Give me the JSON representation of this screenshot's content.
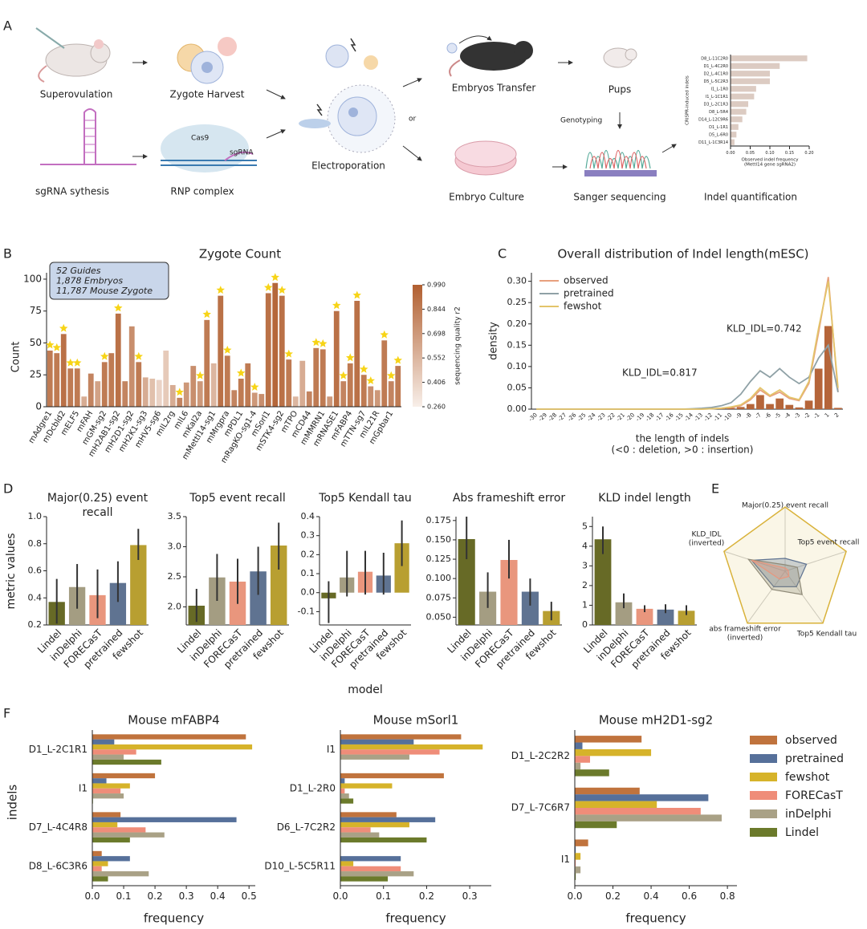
{
  "panel_labels": [
    "A",
    "B",
    "C",
    "D",
    "E",
    "F"
  ],
  "panel_a": {
    "steps": [
      "Superovulation",
      "Zygote Harvest",
      "sgRNA sythesis",
      "RNP complex",
      "Electroporation",
      "Embryos Transfer",
      "Pups",
      "Embryo Culture",
      "Sanger sequencing",
      "Indel quantification"
    ],
    "labels": [
      "Cas9",
      "sgRNA",
      "or",
      "Genotyping"
    ]
  },
  "chart_data": [
    {
      "type": "barh",
      "ylabel": "CRISPR-induced indels",
      "xlabel": [
        "Observed indel frequency",
        "(Mettl14 gene sgRNA2)"
      ],
      "categories": [
        "D8_L-11C2R0",
        "D1_L-4C2R0",
        "D2_L-4C1R0",
        "D5_L-5C2R3",
        "I1_L-1R0",
        "I1_L-1C1R1",
        "D3_L-2C1R3",
        "D8_L-5R4",
        "D14_L-12C9R6",
        "D1_L-1R1",
        "D5_L-6R0",
        "D11_L-1C3R14"
      ],
      "values": [
        0.195,
        0.125,
        0.1,
        0.1,
        0.065,
        0.06,
        0.045,
        0.04,
        0.03,
        0.02,
        0.015,
        0.01
      ],
      "color": "#dccbc2",
      "xlim": [
        0,
        0.2
      ],
      "xticks": [
        {
          "value": 0,
          "label": "0.00"
        },
        0.05,
        {
          "value": 0.1,
          "label": "0.10"
        },
        0.15,
        {
          "value": 0.2,
          "label": "0.20"
        }
      ]
    },
    {
      "type": "bar",
      "title": "Zygote Count",
      "ylabel": "Count",
      "annotation": [
        "52 Guides",
        "1,878 Embryos",
        "11,787 Mouse Zygote"
      ],
      "categories": [
        "mAdgre1",
        null,
        "mDcbld2",
        null,
        "mELF5",
        null,
        "mFAH",
        null,
        "mGM-sg2",
        null,
        "mH2AB1-sg2",
        null,
        "mH2D1-sg2",
        null,
        "mH2K1-sg3",
        null,
        "mHV5-sg6",
        null,
        "mIL2rg",
        null,
        "mIL6",
        null,
        "mKal2a",
        null,
        "mMettl14-sg1",
        null,
        "mMrgpra",
        null,
        "mPDL1",
        null,
        "mRagKO-sg1-4",
        null,
        "mSorl1",
        null,
        "mSTK4-sg2",
        null,
        "mTPO",
        null,
        "mCD44",
        null,
        "mMMRN1",
        null,
        "mRNASE1",
        null,
        "mFABP4",
        null,
        "mTTN-sg7",
        null,
        "mIL21R",
        null,
        "mGpbar1",
        null
      ],
      "values": [
        44,
        42,
        57,
        30,
        30,
        8,
        26,
        20,
        35,
        42,
        73,
        20,
        63,
        35,
        23,
        22,
        21,
        44,
        17,
        7,
        19,
        32,
        20,
        68,
        34,
        87,
        40,
        13,
        22,
        34,
        11,
        10,
        89,
        97,
        87,
        37,
        8,
        36,
        12,
        46,
        45,
        8,
        75,
        20,
        34,
        83,
        25,
        16,
        13,
        52,
        20,
        32
      ],
      "quality": [
        0.85,
        0.85,
        0.9,
        0.85,
        0.85,
        0.6,
        0.8,
        0.65,
        0.85,
        0.85,
        0.9,
        0.8,
        0.75,
        0.85,
        0.6,
        0.5,
        0.4,
        0.45,
        0.6,
        0.8,
        0.7,
        0.75,
        0.7,
        0.85,
        0.55,
        0.9,
        0.85,
        0.8,
        0.85,
        0.85,
        0.7,
        0.75,
        0.9,
        0.95,
        0.9,
        0.85,
        0.55,
        0.6,
        0.8,
        0.85,
        0.85,
        0.7,
        0.9,
        0.8,
        0.85,
        0.9,
        0.85,
        0.75,
        0.7,
        0.85,
        0.8,
        0.85
      ],
      "highlight": [
        true,
        true,
        true,
        true,
        true,
        false,
        false,
        false,
        true,
        false,
        true,
        false,
        false,
        true,
        false,
        false,
        false,
        false,
        false,
        true,
        false,
        false,
        true,
        true,
        false,
        true,
        true,
        false,
        true,
        false,
        true,
        false,
        true,
        true,
        true,
        true,
        false,
        false,
        false,
        true,
        true,
        false,
        true,
        true,
        true,
        true,
        true,
        true,
        false,
        true,
        true,
        true
      ],
      "star_color": "#f7d417",
      "ylim": [
        0,
        105
      ],
      "yticks": [
        0,
        25,
        50,
        75,
        100
      ],
      "colorbar": {
        "label": "sequencing quality r2",
        "zlim": [
          0.26,
          0.99
        ],
        "zticks": [
          {
            "value": 0.99,
            "label": "0.990"
          },
          0.844,
          0.698,
          0.552,
          0.406,
          {
            "value": 0.26,
            "label": "0.260"
          }
        ],
        "colors": [
          "#f8efe9",
          "#b15f30"
        ]
      }
    },
    {
      "type": "density",
      "title": "Overall distribution of Indel length(mESC)",
      "ylabel": "density",
      "xlabel": [
        "the length of indels",
        "(<0 : deletion, >0 : insertion)"
      ],
      "categories": [
        "-30",
        "-29",
        "-28",
        "-27",
        "-26",
        "-25",
        "-24",
        "-23",
        "-22",
        "-21",
        "-20",
        "-19",
        "-18",
        "-17",
        "-16",
        "-15",
        "-14",
        "-13",
        "-12",
        "-11",
        "-10",
        "-9",
        "-8",
        "-7",
        "-6",
        "-5",
        "-4",
        "-3",
        "-2",
        "-1",
        "1",
        "2"
      ],
      "values": [
        0,
        0,
        0,
        0,
        0,
        0,
        0,
        0,
        0,
        0,
        0,
        0,
        0,
        0,
        0,
        0,
        0,
        0,
        0,
        0.002,
        0.003,
        0.005,
        0.012,
        0.033,
        0.012,
        0.025,
        0.01,
        0.004,
        0.02,
        0.095,
        0.195,
        0.003
      ],
      "color": "#b5653a",
      "series": [
        {
          "name": "observed",
          "color": "#e8a07e",
          "values": [
            0,
            0,
            0,
            0,
            0,
            0,
            0,
            0,
            0,
            0,
            0,
            0,
            0,
            0,
            0,
            0,
            0,
            0,
            0.001,
            0.002,
            0.004,
            0.008,
            0.022,
            0.045,
            0.03,
            0.04,
            0.025,
            0.02,
            0.06,
            0.18,
            0.31,
            0.04
          ]
        },
        {
          "name": "pretrained",
          "color": "#8fa1a6",
          "values": [
            0,
            0,
            0,
            0,
            0,
            0,
            0,
            0,
            0,
            0,
            0,
            0,
            0,
            0,
            0,
            0,
            0.001,
            0.002,
            0.004,
            0.008,
            0.015,
            0.035,
            0.065,
            0.09,
            0.075,
            0.095,
            0.075,
            0.06,
            0.075,
            0.12,
            0.15,
            0.04
          ]
        },
        {
          "name": "fewshot",
          "color": "#e3c46a",
          "values": [
            0,
            0,
            0,
            0,
            0,
            0,
            0,
            0,
            0,
            0,
            0,
            0,
            0,
            0,
            0,
            0,
            0,
            0,
            0.001,
            0.002,
            0.005,
            0.01,
            0.025,
            0.05,
            0.032,
            0.045,
            0.028,
            0.022,
            0.065,
            0.19,
            0.3,
            0.05
          ]
        }
      ],
      "annotations": [
        {
          "text": "KLD_IDL=0.742",
          "color": "#d9a520"
        },
        {
          "text": "KLD_IDL=0.817",
          "color": "#6f86a6"
        }
      ],
      "legend": "upper left",
      "ylim": [
        0,
        0.32
      ],
      "yticks": [
        {
          "value": 0,
          "label": "0.00"
        },
        0.05,
        {
          "value": 0.1,
          "label": "0.10"
        },
        0.15,
        {
          "value": 0.2,
          "label": "0.20"
        },
        0.25,
        {
          "value": 0.3,
          "label": "0.30"
        }
      ]
    },
    {
      "type": "bar_error",
      "title": [
        "Major(0.25) event",
        "recall"
      ],
      "ylabel": "metric values",
      "categories": [
        "Lindel",
        "inDelphi",
        "FORECasT",
        "pretrained",
        "fewshot"
      ],
      "colors": [
        "#676a26",
        "#a49d82",
        "#e9967d",
        "#5f7391",
        "#b89f31"
      ],
      "values": [
        0.37,
        0.48,
        0.42,
        0.51,
        0.79
      ],
      "err_low": [
        0.21,
        0.32,
        0.25,
        0.37,
        0.68
      ],
      "err_high": [
        0.54,
        0.65,
        0.61,
        0.67,
        0.91
      ],
      "ylim": [
        0.2,
        1.0
      ],
      "yticks": [
        0.2,
        0.4,
        0.6,
        0.8,
        {
          "value": 1,
          "label": "1.0"
        }
      ]
    },
    {
      "type": "bar_error",
      "title": [
        "Top5 event recall"
      ],
      "categories": [
        "Lindel",
        "inDelphi",
        "FORECasT",
        "pretrained",
        "fewshot"
      ],
      "colors": [
        "#676a26",
        "#a49d82",
        "#e9967d",
        "#5f7391",
        "#b89f31"
      ],
      "values": [
        2.02,
        2.49,
        2.42,
        2.59,
        3.02
      ],
      "err_low": [
        1.75,
        2.1,
        2.05,
        2.2,
        2.62
      ],
      "err_high": [
        2.3,
        2.88,
        2.8,
        3.0,
        3.4
      ],
      "ylim": [
        1.7,
        3.5
      ],
      "yticks": [
        {
          "value": 2,
          "label": "2.0"
        },
        2.5,
        {
          "value": 3,
          "label": "3.0"
        },
        3.5
      ]
    },
    {
      "type": "bar_error",
      "title": [
        "Top5 Kendall tau"
      ],
      "xlabel": "model",
      "categories": [
        "Lindel",
        "inDelphi",
        "FORECasT",
        "pretrained",
        "fewshot"
      ],
      "colors": [
        "#676a26",
        "#a49d82",
        "#e9967d",
        "#5f7391",
        "#b89f31"
      ],
      "values": [
        -0.03,
        0.08,
        0.11,
        0.09,
        0.26
      ],
      "err_low": [
        -0.16,
        -0.02,
        -0.01,
        -0.01,
        0.14
      ],
      "err_high": [
        0.06,
        0.22,
        0.22,
        0.21,
        0.38
      ],
      "ylim": [
        -0.17,
        0.4
      ],
      "yticks": [
        -0.1,
        {
          "value": 0,
          "label": "0.0"
        },
        0.1,
        0.2,
        0.3,
        0.4
      ]
    },
    {
      "type": "bar_error",
      "title": [
        "Abs frameshift error"
      ],
      "categories": [
        "Lindel",
        "inDelphi",
        "FORECasT",
        "pretrained",
        "fewshot"
      ],
      "colors": [
        "#676a26",
        "#a49d82",
        "#e9967d",
        "#5f7391",
        "#b89f31"
      ],
      "values": [
        0.151,
        0.083,
        0.124,
        0.083,
        0.058
      ],
      "err_low": [
        0.125,
        0.062,
        0.1,
        0.065,
        0.046
      ],
      "err_high": [
        0.18,
        0.108,
        0.15,
        0.1,
        0.07
      ],
      "ylim": [
        0.04,
        0.18
      ],
      "yticks": [
        {
          "value": 0.05,
          "label": "0.050"
        },
        0.075,
        {
          "value": 0.1,
          "label": "0.100"
        },
        0.125,
        {
          "value": 0.15,
          "label": "0.150"
        },
        0.175
      ]
    },
    {
      "type": "bar_error",
      "title": [
        "KLD indel length"
      ],
      "categories": [
        "Lindel",
        "inDelphi",
        "FORECasT",
        "pretrained",
        "fewshot"
      ],
      "colors": [
        "#676a26",
        "#a49d82",
        "#e9967d",
        "#5f7391",
        "#b89f31"
      ],
      "values": [
        4.35,
        1.15,
        0.82,
        0.78,
        0.72
      ],
      "err_low": [
        3.6,
        0.85,
        0.65,
        0.6,
        0.5
      ],
      "err_high": [
        5.0,
        1.6,
        1.0,
        1.05,
        1.0
      ],
      "ylim": [
        0,
        5.5
      ],
      "yticks": [
        0,
        1,
        2,
        3,
        4,
        5
      ]
    },
    {
      "type": "radar",
      "axes": [
        [
          "Major(0.25) event recall"
        ],
        [
          "Top5 event recall"
        ],
        [
          "Top5 Kendall tau"
        ],
        [
          "abs frameshift error",
          "(inverted)"
        ],
        [
          "KLD_IDL",
          "(inverted)"
        ]
      ],
      "rlim": [
        0,
        1
      ],
      "series": [
        {
          "name": "fewshot",
          "color": "#d9b23a",
          "values": [
            1,
            1,
            1,
            1,
            1
          ]
        },
        {
          "name": "pretrained",
          "color": "#5f7391",
          "values": [
            0.2,
            0.35,
            0.3,
            0.3,
            0.55
          ]
        },
        {
          "name": "inDelphi",
          "color": "#8f8a78",
          "values": [
            0.1,
            0.2,
            0.45,
            0.35,
            0.6
          ]
        },
        {
          "name": "FORECasT",
          "color": "#e9967d",
          "values": [
            0.05,
            0.05,
            0.1,
            0.15,
            0.55
          ]
        },
        {
          "name": "Lindel",
          "color": "#676a26",
          "values": [
            0,
            0,
            0,
            0,
            0
          ]
        }
      ]
    },
    {
      "type": "grouped_barh",
      "title": "Mouse mFABP4",
      "ylabel": "indels",
      "xlabel": "frequency",
      "legend": "right",
      "categories": [
        "D1_L-2C1R1",
        "I1",
        "D7_L-4C4R8",
        "D8_L-6C3R6"
      ],
      "series": [
        {
          "name": "observed",
          "color": "#c0733d",
          "values": [
            0.49,
            0.2,
            0.09,
            0.03
          ]
        },
        {
          "name": "pretrained",
          "color": "#56709a",
          "values": [
            0.07,
            0.045,
            0.46,
            0.12
          ]
        },
        {
          "name": "fewshot",
          "color": "#d6b32a",
          "values": [
            0.51,
            0.12,
            0.08,
            0.05
          ]
        },
        {
          "name": "FORECasT",
          "color": "#ef8d79",
          "values": [
            0.14,
            0.09,
            0.17,
            0.03
          ]
        },
        {
          "name": "inDelphi",
          "color": "#a9a186",
          "values": [
            0.1,
            0.1,
            0.23,
            0.18
          ]
        },
        {
          "name": "Lindel",
          "color": "#6b7a2b",
          "values": [
            0.22,
            0.002,
            0.12,
            0.05
          ]
        }
      ],
      "xlim": [
        0,
        0.52
      ],
      "xticks": [
        {
          "value": 0,
          "label": "0.0"
        },
        0.1,
        0.2,
        0.3,
        0.4,
        0.5
      ]
    },
    {
      "type": "grouped_barh",
      "title": "Mouse mSorl1",
      "xlabel": "frequency",
      "categories": [
        "I1",
        "D1_L-2R0",
        "D6_L-7C2R2",
        "D10_L-5C5R11"
      ],
      "series": [
        {
          "name": "observed",
          "color": "#c0733d",
          "values": [
            0.28,
            0.24,
            0.13,
            0
          ]
        },
        {
          "name": "pretrained",
          "color": "#56709a",
          "values": [
            0.17,
            0.01,
            0.22,
            0.14
          ]
        },
        {
          "name": "fewshot",
          "color": "#d6b32a",
          "values": [
            0.33,
            0.12,
            0.16,
            0.03
          ]
        },
        {
          "name": "FORECasT",
          "color": "#ef8d79",
          "values": [
            0.23,
            0.01,
            0.07,
            0.14
          ]
        },
        {
          "name": "inDelphi",
          "color": "#a9a186",
          "values": [
            0.16,
            0.02,
            0.09,
            0.17
          ]
        },
        {
          "name": "Lindel",
          "color": "#6b7a2b",
          "values": [
            0,
            0.03,
            0.2,
            0.11
          ]
        }
      ],
      "xlim": [
        0,
        0.35
      ],
      "xticks": [
        {
          "value": 0,
          "label": "0.0"
        },
        0.1,
        0.2,
        0.3
      ]
    },
    {
      "type": "grouped_barh",
      "title": "Mouse mH2D1-sg2",
      "xlabel": "frequency",
      "categories": [
        "D1_L-2C2R2",
        "D7_L-7C6R7",
        "I1"
      ],
      "series": [
        {
          "name": "observed",
          "color": "#c0733d",
          "values": [
            0.35,
            0.34,
            0.07
          ]
        },
        {
          "name": "pretrained",
          "color": "#56709a",
          "values": [
            0.04,
            0.7,
            0.005
          ]
        },
        {
          "name": "fewshot",
          "color": "#d6b32a",
          "values": [
            0.4,
            0.43,
            0.03
          ]
        },
        {
          "name": "FORECasT",
          "color": "#ef8d79",
          "values": [
            0.08,
            0.66,
            0.005
          ]
        },
        {
          "name": "inDelphi",
          "color": "#a9a186",
          "values": [
            0.03,
            0.77,
            0.03
          ]
        },
        {
          "name": "Lindel",
          "color": "#6b7a2b",
          "values": [
            0.18,
            0.22,
            0.005
          ]
        }
      ],
      "xlim": [
        0,
        0.85
      ],
      "xticks": [
        {
          "value": 0,
          "label": "0.0"
        },
        0.2,
        0.4,
        0.6,
        0.8
      ]
    }
  ]
}
